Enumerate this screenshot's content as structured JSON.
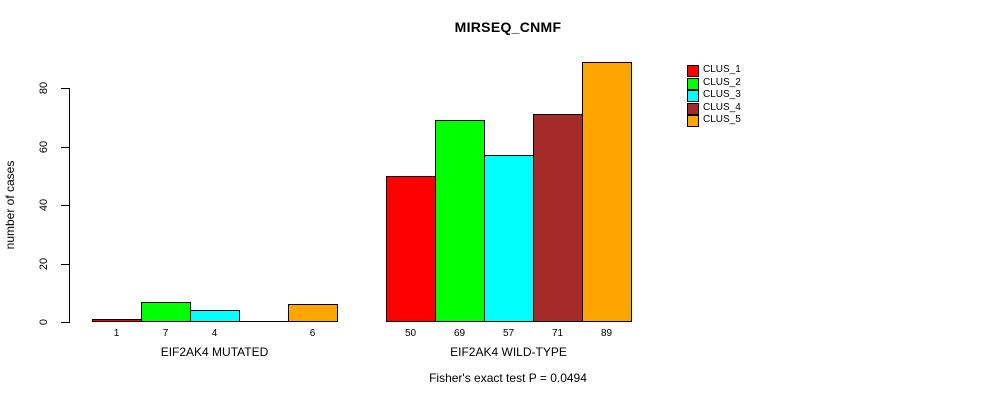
{
  "chart_data": {
    "type": "bar",
    "title": "MIRSEQ_CNMF",
    "ylabel": "number of cases",
    "xlabel": "",
    "yticks": [
      0,
      20,
      40,
      60,
      80
    ],
    "ylim": [
      0,
      89
    ],
    "grid": false,
    "legend_position": "right",
    "clusters": [
      {
        "name": "CLUS_1",
        "color": "#FF0000"
      },
      {
        "name": "CLUS_2",
        "color": "#00FF00"
      },
      {
        "name": "CLUS_3",
        "color": "#00FFFF"
      },
      {
        "name": "CLUS_4",
        "color": "#A52A2A"
      },
      {
        "name": "CLUS_5",
        "color": "#FFA500"
      }
    ],
    "groups": [
      {
        "label": "EIF2AK4 MUTATED",
        "values": [
          1,
          7,
          4,
          0,
          6
        ],
        "bar_labels": [
          "1",
          "7",
          "4",
          "",
          "6"
        ]
      },
      {
        "label": "EIF2AK4 WILD-TYPE",
        "values": [
          50,
          69,
          57,
          71,
          89
        ],
        "bar_labels": [
          "50",
          "69",
          "57",
          "71",
          "89"
        ]
      }
    ],
    "footnote": "Fisher's exact test P = 0.0494"
  }
}
